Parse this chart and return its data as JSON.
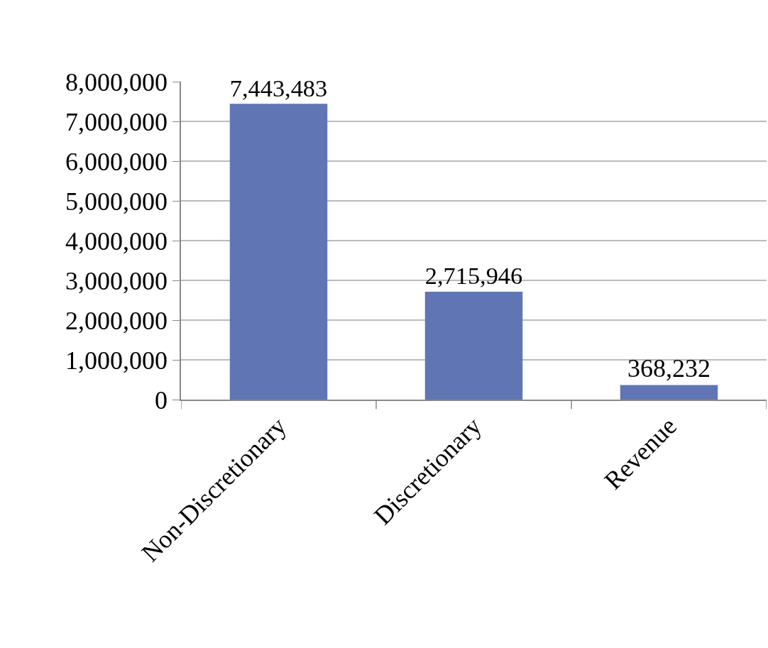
{
  "chart_data": {
    "type": "bar",
    "categories": [
      "Non-Discretionary",
      "Discretionary",
      "Revenue"
    ],
    "values": [
      7443483,
      2715946,
      368232
    ],
    "value_labels": [
      "7,443,483",
      "2,715,946",
      "368,232"
    ],
    "color": "#6076b4",
    "ylim": [
      0,
      8000000
    ],
    "yticks": [
      0,
      {
        "value": 1000000,
        "label": "1,000,000"
      },
      {
        "value": 2000000,
        "label": "2,000,000"
      },
      {
        "value": 3000000,
        "label": "3,000,000"
      },
      {
        "value": 4000000,
        "label": "4,000,000"
      },
      {
        "value": 5000000,
        "label": "5,000,000"
      },
      {
        "value": 6000000,
        "label": "6,000,000"
      },
      {
        "value": 7000000,
        "label": "7,000,000"
      },
      {
        "value": 8000000,
        "label": "8,000,000"
      }
    ],
    "grid": "y"
  }
}
